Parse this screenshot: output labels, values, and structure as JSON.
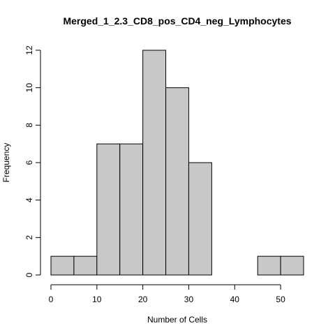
{
  "chart_data": {
    "type": "bar",
    "title": "Merged_1_2.3_CD8_pos_CD4_neg_Lymphocytes",
    "xlabel": "Number of Cells",
    "ylabel": "Frequency",
    "bins": [
      {
        "from": 0,
        "to": 5,
        "count": 1
      },
      {
        "from": 5,
        "to": 10,
        "count": 1
      },
      {
        "from": 10,
        "to": 15,
        "count": 7
      },
      {
        "from": 15,
        "to": 20,
        "count": 7
      },
      {
        "from": 20,
        "to": 25,
        "count": 12
      },
      {
        "from": 25,
        "to": 30,
        "count": 10
      },
      {
        "from": 30,
        "to": 35,
        "count": 6
      },
      {
        "from": 35,
        "to": 40,
        "count": 0
      },
      {
        "from": 40,
        "to": 45,
        "count": 0
      },
      {
        "from": 45,
        "to": 50,
        "count": 1
      },
      {
        "from": 50,
        "to": 55,
        "count": 1
      }
    ],
    "xlim": [
      0,
      55
    ],
    "ylim": [
      0,
      12
    ],
    "x_ticks": [
      "0",
      "10",
      "20",
      "30",
      "40",
      "50"
    ],
    "y_ticks": [
      "0",
      "2",
      "4",
      "6",
      "8",
      "10",
      "12"
    ],
    "grid": false,
    "bar_color": "#c8c8c8",
    "border_color": "#000000"
  }
}
